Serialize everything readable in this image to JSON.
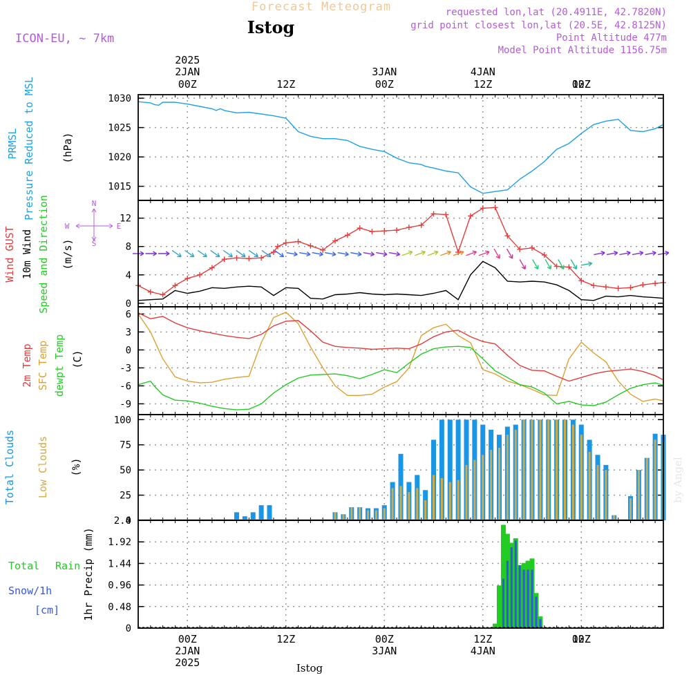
{
  "header": {
    "app_title": "Forecast Meteogram",
    "location": "Istog",
    "model": "ICON-EU, ~ 7km",
    "requested": "requested lon,lat (20.4911E, 42.7820N)",
    "grid_point": "grid point closest lon,lat (20.5E, 42.8125N)",
    "point_altitude": "Point Altitude 477m",
    "model_altitude": "Model Point Altitude 1156.75m",
    "footer_location": "Istog",
    "watermark": "by Angel"
  },
  "time_axis": {
    "top_year": "2025",
    "dates": [
      "2JAN",
      "3JAN",
      "4JAN"
    ],
    "ticks": [
      "00Z",
      "12Z",
      "00Z",
      "12Z",
      "00Z",
      "12Z"
    ],
    "bottom_year": "2025"
  },
  "colors": {
    "pressure": "#1ea0e6",
    "gust": "#e63c3c",
    "wind": "#000000",
    "temp2m": "#e63c3c",
    "sfc": "#e0a030",
    "dewpt": "#22cc22",
    "total_cloud": "#1a96e6",
    "low_cloud": "#d4aa44",
    "rain": "#22cc22",
    "snow": "#3355ee",
    "header_purple": "#b45cd6",
    "header_orange": "#f0c898"
  },
  "panels": {
    "pressure": {
      "label1": "PRMSL",
      "label2": "Pressure Reduced to MSL",
      "unit": "(hPa)"
    },
    "wind": {
      "label1": "Wind GUST",
      "label2": "10m Wind",
      "label3": "Speed and Direction",
      "unit": "(m/s)",
      "compass_n": "N",
      "compass_s": "S",
      "compass_w": "W",
      "compass_e": "E"
    },
    "temp": {
      "label1": "2m Temp",
      "label2": "SFC Temp",
      "label3": "dewpt Temp",
      "unit": "(C)"
    },
    "cloud": {
      "label1": "Total Clouds",
      "label2": "Low Clouds",
      "unit": "(%)"
    },
    "precip": {
      "label1": "Total",
      "label2": "Rain",
      "label3": "Snow/1h",
      "label4": "[cm]",
      "unit": "1hr Precip (mm)"
    }
  },
  "chart_data": [
    {
      "type": "line",
      "name": "pressure",
      "x_unit": "hours since 2025-01-01 12Z",
      "ylim": [
        1012.6,
        1030.6
      ],
      "yticks": [
        1015,
        1020,
        1025,
        1030
      ],
      "series": [
        {
          "name": "PRMSL",
          "x": [
            0,
            3,
            4,
            5,
            6,
            9,
            12,
            15,
            18,
            19,
            20,
            21,
            24,
            27,
            30,
            33,
            36,
            39,
            42,
            45,
            48,
            51,
            54,
            57,
            60,
            63,
            66,
            69,
            70,
            72,
            75,
            78,
            81,
            84,
            87,
            90,
            93,
            96,
            99,
            102,
            105,
            108,
            111,
            114,
            117,
            120,
            123,
            126,
            128
          ],
          "y": [
            1029.4,
            1029.2,
            1028.9,
            1028.8,
            1029.3,
            1029.3,
            1029.0,
            1028.6,
            1028.2,
            1027.9,
            1028.2,
            1027.9,
            1027.5,
            1027.6,
            1027.3,
            1027.0,
            1026.6,
            1024.3,
            1023.5,
            1023.1,
            1023.1,
            1022.8,
            1021.8,
            1021.3,
            1020.9,
            1019.8,
            1019.0,
            1018.7,
            1018.4,
            1018.1,
            1017.6,
            1017.3,
            1014.9,
            1013.8,
            1014.1,
            1014.4,
            1016.2,
            1017.6,
            1019.2,
            1021.3,
            1022.3,
            1024.0,
            1025.5,
            1026.1,
            1026.4,
            1024.5,
            1024.3,
            1024.8,
            1025.5
          ]
        }
      ]
    },
    {
      "type": "line",
      "name": "wind",
      "ylim": [
        -0.5,
        14.5
      ],
      "yticks": [
        0,
        4,
        8,
        12
      ],
      "series": [
        {
          "name": "Wind GUST",
          "x": [
            0,
            3,
            6,
            9,
            12,
            15,
            18,
            21,
            24,
            27,
            30,
            33,
            34,
            36,
            39,
            42,
            45,
            48,
            51,
            54,
            57,
            60,
            63,
            66,
            69,
            72,
            75,
            78,
            81,
            84,
            87,
            90,
            93,
            96,
            99,
            102,
            105,
            108,
            111,
            114,
            117,
            120,
            123,
            126,
            128
          ],
          "y": [
            2.5,
            1.6,
            1.2,
            2.5,
            3.5,
            4.0,
            5.0,
            6.2,
            6.4,
            6.3,
            6.4,
            7.2,
            8.0,
            8.5,
            8.7,
            8.1,
            7.5,
            8.8,
            9.6,
            10.6,
            10.1,
            10.2,
            10.3,
            10.7,
            11.0,
            12.6,
            12.5,
            7.2,
            12.3,
            13.4,
            13.5,
            9.5,
            7.6,
            7.8,
            6.8,
            5.2,
            5.1,
            3.2,
            2.5,
            2.3,
            2.1,
            2.2,
            2.6,
            2.8,
            2.9
          ]
        },
        {
          "name": "10m Wind",
          "x": [
            0,
            3,
            6,
            9,
            12,
            15,
            18,
            21,
            24,
            27,
            30,
            33,
            36,
            39,
            42,
            45,
            48,
            51,
            54,
            57,
            60,
            63,
            66,
            69,
            72,
            75,
            78,
            81,
            84,
            87,
            90,
            93,
            96,
            99,
            102,
            105,
            108,
            111,
            114,
            117,
            120,
            123,
            126,
            128
          ],
          "y": [
            0.4,
            0.5,
            0.6,
            1.8,
            1.4,
            1.7,
            2.2,
            2.1,
            2.3,
            2.4,
            2.3,
            1.1,
            2.2,
            2.1,
            0.7,
            0.6,
            1.2,
            1.3,
            1.5,
            1.3,
            1.2,
            1.3,
            1.2,
            1.1,
            1.4,
            1.8,
            0.5,
            4.0,
            5.9,
            5.0,
            3.1,
            3.0,
            3.1,
            3.0,
            2.6,
            1.8,
            0.5,
            0.4,
            1.0,
            0.9,
            1.1,
            0.9,
            0.8,
            0.7
          ]
        }
      ],
      "arrows": {
        "level": 7.0,
        "count": 42,
        "colors": [
          "#7a2fd6",
          "#2ea8c8",
          "#2ea8c8",
          "#2d9fd0",
          "#3366ff",
          "#3366ff",
          "#3366ff",
          "#8a2be2",
          "#aacc22",
          "#ee8822",
          "#ee3388",
          "#cc3399",
          "#22cc77",
          "#22bb99",
          "#7a2fd6",
          "#7a2fd6"
        ]
      }
    },
    {
      "type": "line",
      "name": "temperature",
      "ylim": [
        -10.8,
        7.2
      ],
      "yticks": [
        6,
        3,
        0,
        -3,
        -6,
        -9
      ],
      "series": [
        {
          "name": "2m Temp",
          "x": [
            0,
            3,
            6,
            9,
            12,
            15,
            18,
            21,
            24,
            27,
            30,
            33,
            36,
            39,
            42,
            45,
            48,
            51,
            54,
            57,
            60,
            63,
            66,
            69,
            72,
            75,
            78,
            81,
            84,
            87,
            90,
            93,
            96,
            99,
            102,
            105,
            108,
            111,
            114,
            117,
            120,
            123,
            126,
            128
          ],
          "y": [
            6.2,
            5.2,
            5.6,
            4.5,
            3.7,
            3.2,
            2.8,
            2.4,
            2.1,
            1.9,
            2.6,
            4.0,
            4.8,
            4.9,
            3.2,
            1.3,
            0.6,
            0.4,
            0.3,
            0.1,
            0.2,
            0.3,
            0.2,
            1.0,
            2.2,
            3.0,
            3.3,
            2.2,
            1.4,
            1.0,
            -0.9,
            -2.6,
            -3.4,
            -3.5,
            -4.4,
            -5.2,
            -4.6,
            -4.0,
            -3.6,
            -3.4,
            -3.2,
            -3.6,
            -4.3,
            -5.0
          ]
        },
        {
          "name": "SFC Temp",
          "x": [
            0,
            3,
            6,
            9,
            12,
            15,
            18,
            21,
            24,
            27,
            30,
            33,
            36,
            39,
            42,
            45,
            48,
            51,
            54,
            57,
            60,
            63,
            66,
            69,
            72,
            75,
            78,
            81,
            84,
            87,
            90,
            93,
            96,
            99,
            102,
            105,
            108,
            111,
            114,
            117,
            120,
            123,
            126,
            128
          ],
          "y": [
            6.0,
            3.0,
            -1.5,
            -4.5,
            -5.2,
            -5.5,
            -5.4,
            -4.9,
            -4.6,
            -4.4,
            1.2,
            5.4,
            6.3,
            4.4,
            0.5,
            -3.0,
            -6.0,
            -7.6,
            -7.6,
            -7.4,
            -6.2,
            -5.3,
            -3.0,
            2.4,
            3.7,
            4.3,
            2.4,
            1.2,
            -3.3,
            -4.0,
            -5.2,
            -5.8,
            -6.6,
            -7.5,
            -7.6,
            -1.5,
            1.3,
            -0.5,
            -2.0,
            -5.2,
            -7.4,
            -8.6,
            -8.2,
            -8.5
          ]
        },
        {
          "name": "dewpt Temp",
          "x": [
            0,
            3,
            4,
            6,
            9,
            12,
            15,
            18,
            21,
            24,
            27,
            30,
            33,
            36,
            39,
            42,
            45,
            48,
            51,
            54,
            57,
            60,
            63,
            66,
            69,
            72,
            75,
            78,
            81,
            84,
            87,
            90,
            93,
            96,
            99,
            102,
            105,
            108,
            111,
            114,
            117,
            120,
            123,
            126,
            128
          ],
          "y": [
            -5.8,
            -5.2,
            -6.1,
            -7.5,
            -8.4,
            -8.5,
            -8.9,
            -9.4,
            -9.8,
            -10.0,
            -9.9,
            -9.0,
            -7.2,
            -5.8,
            -4.7,
            -4.2,
            -4.1,
            -4.0,
            -4.3,
            -4.8,
            -4.1,
            -3.3,
            -3.8,
            -2.2,
            -0.7,
            0.2,
            0.5,
            0.6,
            0.4,
            -1.5,
            -3.5,
            -4.6,
            -5.8,
            -6.2,
            -7.2,
            -9.0,
            -8.6,
            -9.2,
            -9.3,
            -8.7,
            -7.5,
            -6.4,
            -5.8,
            -5.5,
            -5.9
          ]
        }
      ]
    },
    {
      "type": "bar",
      "name": "clouds",
      "ylim": [
        0,
        105
      ],
      "yticks": [
        0,
        25,
        50,
        75,
        100
      ],
      "x": [
        24,
        26,
        28,
        30,
        32,
        48,
        50,
        52,
        54,
        56,
        58,
        60,
        62,
        64,
        66,
        68,
        70,
        72,
        74,
        76,
        78,
        80,
        82,
        84,
        86,
        88,
        90,
        92,
        94,
        96,
        98,
        100,
        102,
        104,
        106,
        108,
        110,
        112,
        114,
        116,
        118,
        120,
        122,
        124,
        126,
        128
      ],
      "series": [
        {
          "name": "Total Clouds",
          "values": [
            8,
            4,
            8,
            15,
            15,
            8,
            6,
            13,
            13,
            12,
            12,
            15,
            38,
            66,
            38,
            45,
            30,
            80,
            100,
            100,
            100,
            100,
            100,
            95,
            90,
            85,
            93,
            95,
            100,
            100,
            100,
            100,
            100,
            100,
            100,
            95,
            80,
            65,
            55,
            5,
            0,
            24,
            50,
            62,
            86,
            85
          ]
        },
        {
          "name": "Low Clouds",
          "values": [
            0,
            0,
            0,
            0,
            0,
            8,
            6,
            13,
            13,
            10,
            10,
            12,
            32,
            34,
            28,
            32,
            20,
            45,
            42,
            38,
            40,
            55,
            60,
            65,
            70,
            72,
            85,
            90,
            100,
            100,
            100,
            100,
            100,
            100,
            95,
            85,
            68,
            55,
            50,
            5,
            0,
            22,
            50,
            62,
            80,
            78
          ]
        }
      ]
    },
    {
      "type": "bar",
      "name": "precipitation",
      "ylim": [
        0,
        2.4
      ],
      "yticks": [
        0,
        0.48,
        0.96,
        1.44,
        1.92,
        2.4
      ],
      "x": [
        87,
        88,
        89,
        90,
        91,
        92,
        93,
        94,
        95,
        96,
        97,
        98,
        99,
        100
      ],
      "series": [
        {
          "name": "Total Rain",
          "values": [
            0.1,
            0.95,
            2.3,
            2.1,
            1.9,
            2.0,
            1.4,
            1.45,
            1.5,
            1.55,
            0.78,
            0.26,
            0,
            0
          ]
        },
        {
          "name": "Snow/1h",
          "values": [
            0,
            0,
            1.1,
            1.5,
            1.8,
            1.95,
            1.4,
            1.3,
            1.3,
            1.3,
            0.7,
            0.2,
            0,
            0
          ]
        }
      ]
    }
  ]
}
